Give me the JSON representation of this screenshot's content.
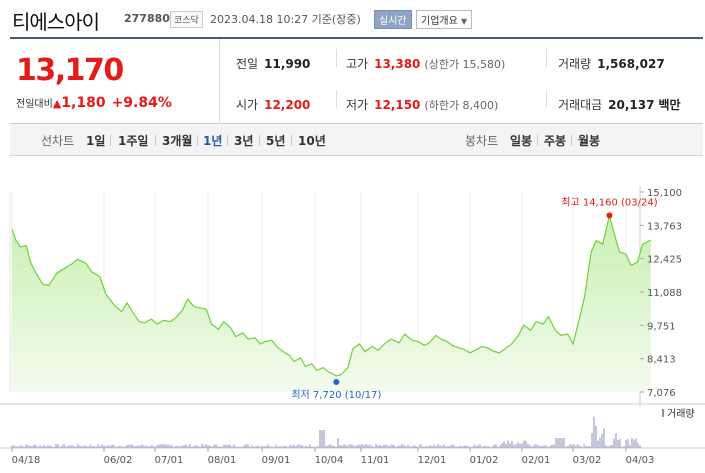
{
  "header": {
    "name": "티에스아이",
    "code": "277880",
    "market": "코스닥",
    "datetime": "2023.04.18 10:27 기준(장중)",
    "realtime_label": "실시간",
    "corp_label": "기업개요"
  },
  "quote": {
    "price": "13,170",
    "change_label": "전일대비",
    "change_value": "1,180",
    "change_pct": "+9.84%",
    "prev_close": {
      "label": "전일",
      "value": "11,990"
    },
    "open": {
      "label": "시가",
      "value": "12,200"
    },
    "high": {
      "label": "고가",
      "value": "13,380",
      "extra": "(상한가 15,580)"
    },
    "low": {
      "label": "저가",
      "value": "12,150",
      "extra": "(하한가 8,400)"
    },
    "volume": {
      "label": "거래량",
      "value": "1,568,027"
    },
    "amount": {
      "label": "거래대금",
      "value": "20,137",
      "unit": "백만"
    }
  },
  "tabs": {
    "line_label": "선차트",
    "periods": [
      "1일",
      "1주일",
      "3개월",
      "1년",
      "3년",
      "5년",
      "10년"
    ],
    "selected": "1년",
    "candle_label": "봉차트",
    "candles": [
      "일봉",
      "주봉",
      "월봉"
    ]
  },
  "colors": {
    "up": "#e41b17",
    "line": "#6fd13a",
    "fill_top": "#c8f0b0",
    "fill_bottom": "#f4fbef",
    "volume": "#8c8cb4",
    "high_marker": "#e41b17",
    "low_marker": "#2266cc"
  },
  "chart_data": {
    "type": "area",
    "yticks": [
      "15,100",
      "13,763",
      "12,425",
      "11,088",
      "9,751",
      "8,413",
      "7,076"
    ],
    "ylim": [
      7076,
      15100
    ],
    "xticks": [
      "04/18",
      "06/02",
      "07/01",
      "08/01",
      "09/01",
      "10/04",
      "11/01",
      "12/01",
      "01/02",
      "02/01",
      "03/02",
      "04/03"
    ],
    "high_annotation": "최고 14,160 (03/24)",
    "high_point": {
      "x": "03/24",
      "y": 14160
    },
    "low_annotation": "최저 7,720 (10/17)",
    "low_point": {
      "x": "10/17",
      "y": 7720
    },
    "volume_label": "거래량",
    "series": [
      {
        "x": [
          "04/18",
          "04/20",
          "04/22",
          "04/25",
          "04/27",
          "04/29",
          "05/03",
          "05/06",
          "05/10",
          "05/13",
          "05/17",
          "05/20",
          "05/24",
          "05/27",
          "05/31",
          "06/03",
          "06/08",
          "06/12",
          "06/15",
          "06/19",
          "06/22",
          "06/25",
          "06/29",
          "07/02",
          "07/06",
          "07/10",
          "07/13",
          "07/17",
          "07/20",
          "07/24",
          "07/27",
          "07/31",
          "08/03",
          "08/07",
          "08/10",
          "08/14",
          "08/17",
          "08/21",
          "08/24",
          "08/28",
          "08/31",
          "09/03",
          "09/07",
          "09/11",
          "09/14",
          "09/18",
          "09/21",
          "09/25",
          "09/28",
          "10/02",
          "10/05",
          "10/09",
          "10/12",
          "10/17",
          "10/20",
          "10/24",
          "10/27",
          "10/31",
          "11/03",
          "11/07",
          "11/10",
          "11/14",
          "11/17",
          "11/21",
          "11/24",
          "11/28",
          "12/01",
          "12/05",
          "12/08",
          "12/12",
          "12/15",
          "12/19",
          "12/22",
          "12/26",
          "12/29",
          "01/02",
          "01/05",
          "01/09",
          "01/12",
          "01/16",
          "01/19",
          "01/23",
          "01/26",
          "01/30",
          "02/02",
          "02/06",
          "02/09",
          "02/13",
          "02/16",
          "02/20",
          "02/23",
          "02/27",
          "03/02",
          "03/06",
          "03/09",
          "03/13",
          "03/16",
          "03/20",
          "03/24",
          "03/27",
          "03/30",
          "04/03",
          "04/06",
          "04/10",
          "04/13",
          "04/18"
        ],
        "y": [
          13600,
          13150,
          12900,
          12950,
          12300,
          11950,
          11400,
          11350,
          11850,
          12000,
          12200,
          12400,
          12250,
          11900,
          11700,
          11000,
          10550,
          10300,
          10650,
          10200,
          9900,
          9850,
          10000,
          9800,
          9950,
          9900,
          10050,
          10350,
          10800,
          10500,
          10450,
          10400,
          9800,
          9600,
          9900,
          9650,
          9300,
          9450,
          9200,
          9250,
          9000,
          9100,
          9150,
          8850,
          8700,
          8550,
          8300,
          8450,
          8100,
          8200,
          7950,
          8050,
          7900,
          7720,
          7780,
          8050,
          8800,
          9000,
          8700,
          8900,
          8750,
          9050,
          9200,
          9050,
          9400,
          9150,
          9100,
          8950,
          9050,
          9350,
          9200,
          9100,
          8950,
          8850,
          8800,
          8650,
          8750,
          8900,
          8850,
          8700,
          8650,
          8850,
          9000,
          9350,
          9750,
          9550,
          9900,
          9800,
          10100,
          9550,
          9350,
          9400,
          9000,
          10050,
          10900,
          12700,
          13150,
          13000,
          14160,
          13400,
          12700,
          12600,
          12150,
          12300,
          13000,
          13170
        ]
      }
    ]
  }
}
